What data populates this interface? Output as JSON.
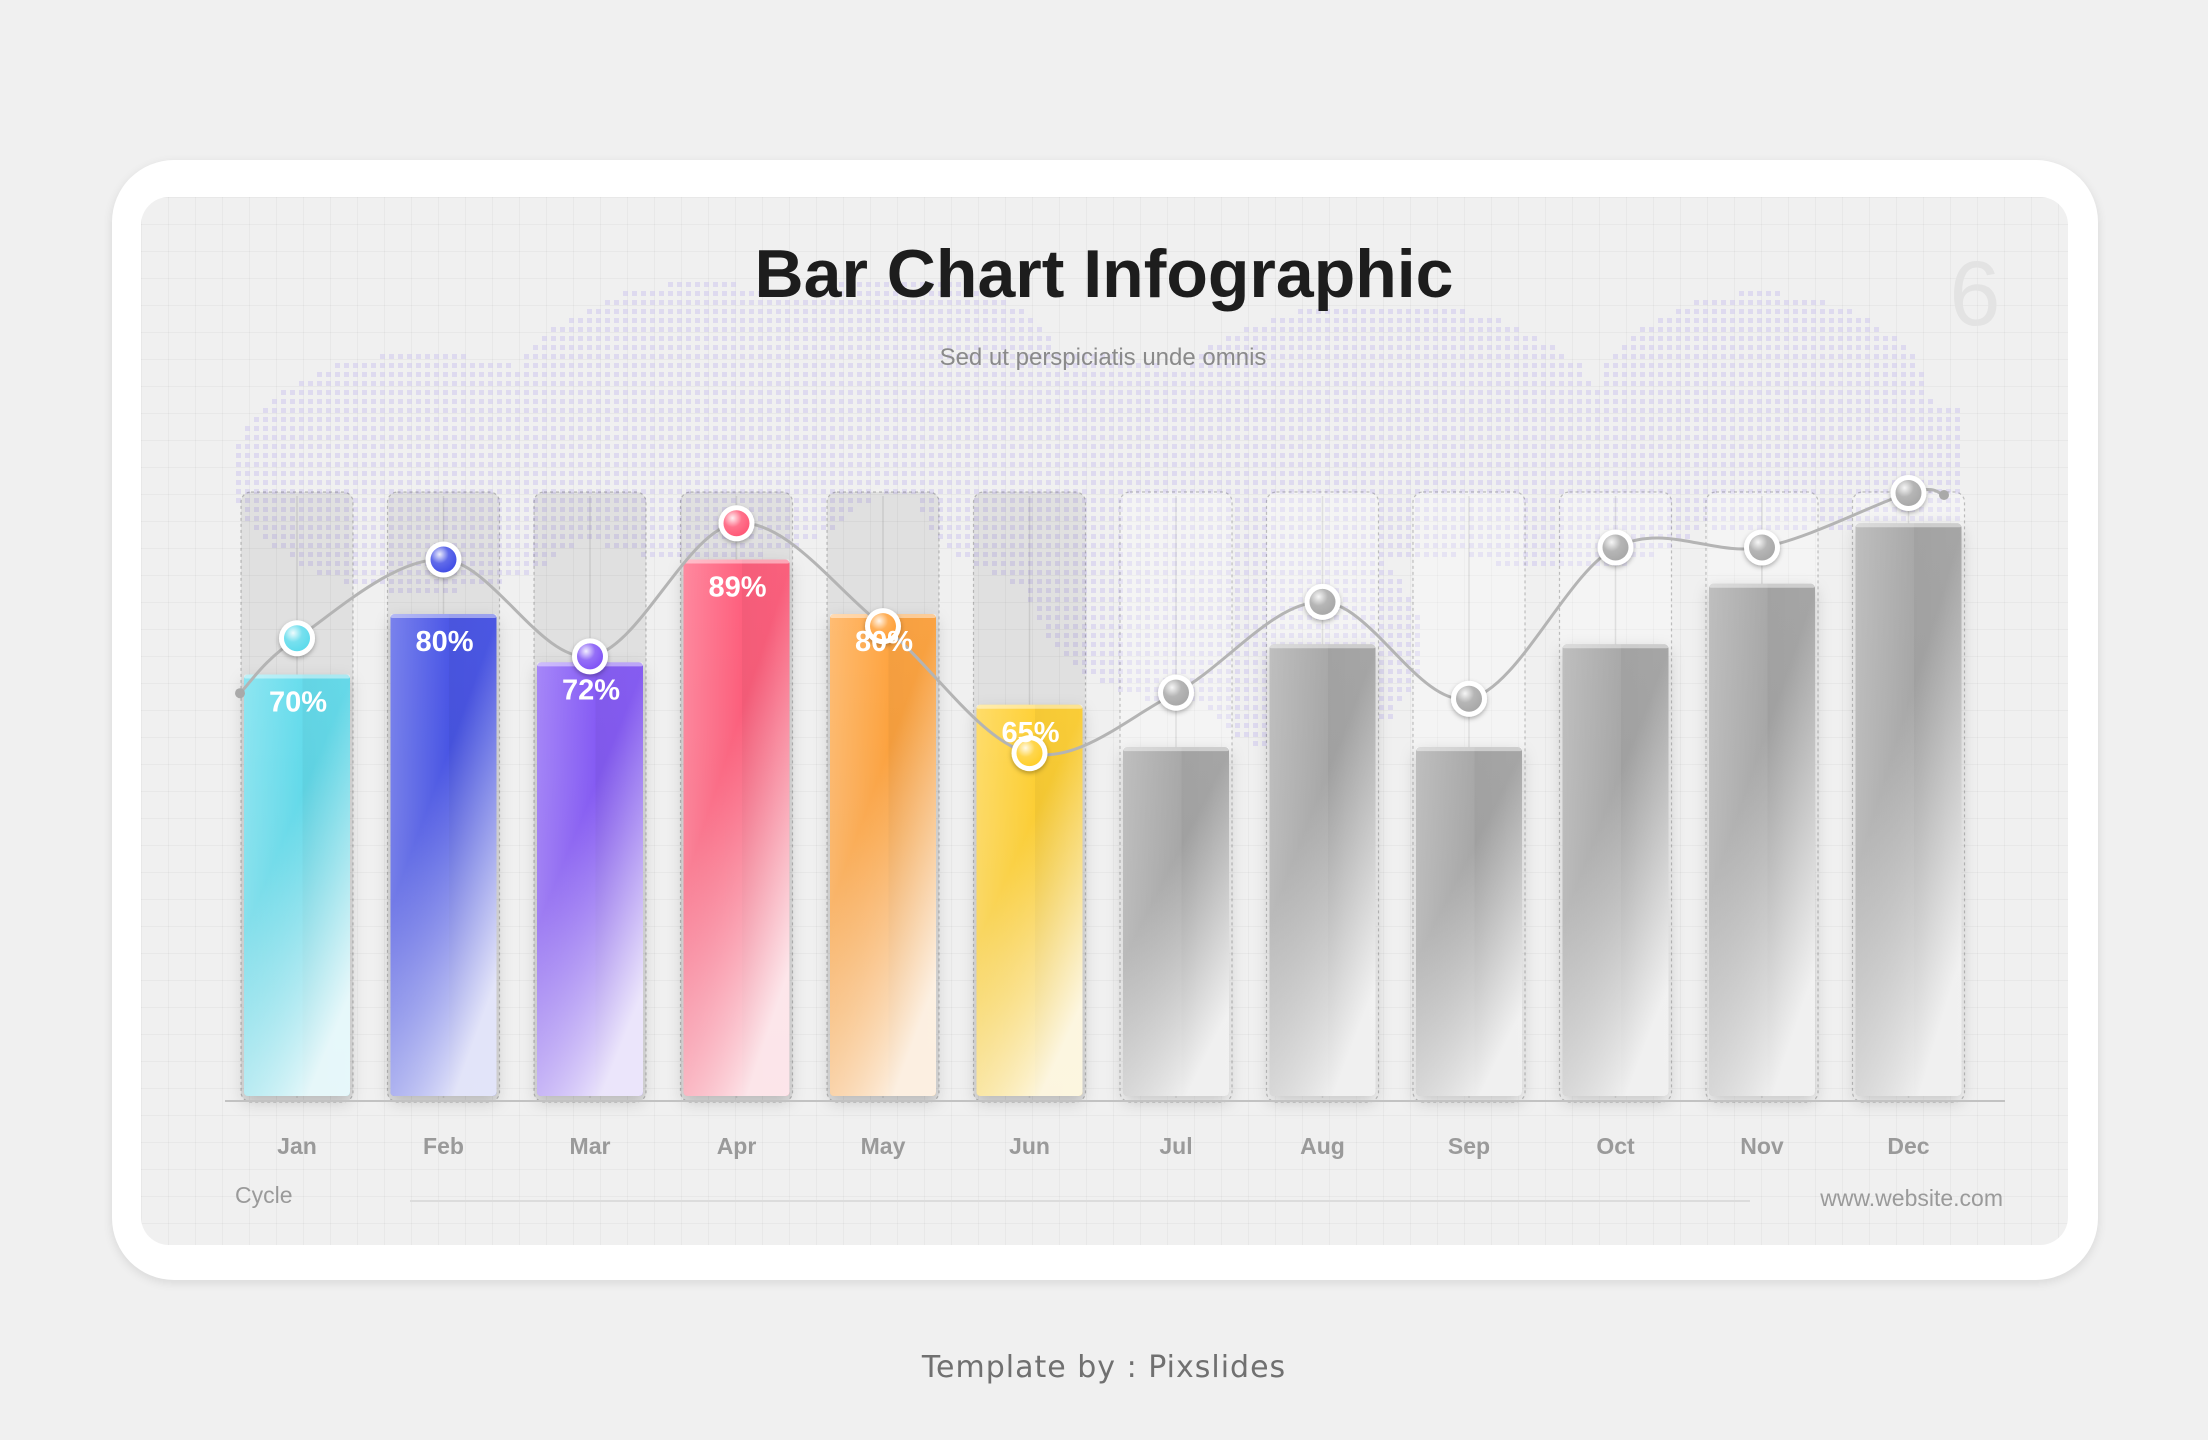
{
  "chart_data": {
    "type": "bar",
    "title": "Bar Chart Infographic",
    "subtitle": "Sed ut perspiciatis unde omnis",
    "page_number": "6",
    "categories": [
      "Jan",
      "Feb",
      "Mar",
      "Apr",
      "May",
      "Jun",
      "Jul",
      "Aug",
      "Sep",
      "Oct",
      "Nov",
      "Dec"
    ],
    "values": [
      70,
      80,
      72,
      89,
      80,
      65,
      58,
      75,
      58,
      75,
      85,
      95
    ],
    "value_labels": [
      "70%",
      "80%",
      "72%",
      "89%",
      "80%",
      "65%",
      "",
      "",
      "",
      "",
      "",
      ""
    ],
    "line_values": [
      76,
      89,
      73,
      95,
      78,
      57,
      67,
      82,
      66,
      91,
      91,
      100
    ],
    "ylim": [
      0,
      100
    ],
    "xlabel": "Cycle",
    "ylabel": "",
    "grid": true,
    "colors": [
      "#5fdbec",
      "#4450e6",
      "#8256f6",
      "#ff5a78",
      "#ffa13a",
      "#ffcf2e",
      "#a9a9a9",
      "#a9a9a9",
      "#a9a9a9",
      "#a9a9a9",
      "#a9a9a9",
      "#a9a9a9"
    ]
  },
  "footer": {
    "website": "www.website.com",
    "credit": "Template by : Pixslides"
  }
}
